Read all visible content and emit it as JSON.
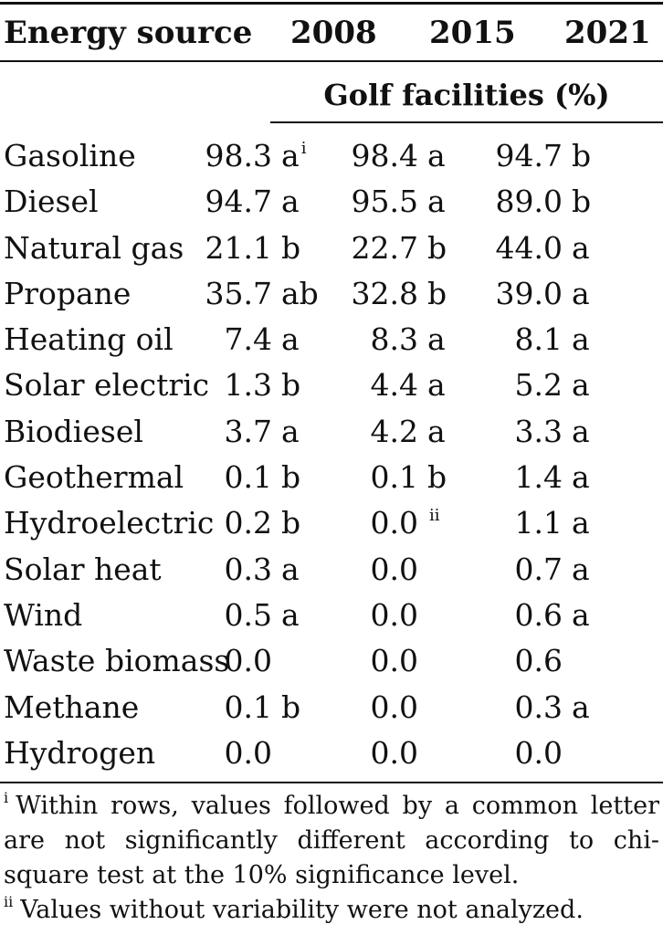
{
  "table": {
    "header": {
      "label": "Energy source",
      "years": [
        "2008",
        "2015",
        "2021"
      ]
    },
    "subheader": "Golf facilities (%)",
    "rows": [
      {
        "name": "Gasoline",
        "cells": [
          {
            "value": "98.3",
            "letter": "a",
            "note": "i"
          },
          {
            "value": "98.4",
            "letter": "a",
            "note": ""
          },
          {
            "value": "94.7",
            "letter": "b",
            "note": ""
          }
        ]
      },
      {
        "name": "Diesel",
        "cells": [
          {
            "value": "94.7",
            "letter": "a",
            "note": ""
          },
          {
            "value": "95.5",
            "letter": "a",
            "note": ""
          },
          {
            "value": "89.0",
            "letter": "b",
            "note": ""
          }
        ]
      },
      {
        "name": "Natural gas",
        "cells": [
          {
            "value": "21.1",
            "letter": "b",
            "note": ""
          },
          {
            "value": "22.7",
            "letter": "b",
            "note": ""
          },
          {
            "value": "44.0",
            "letter": "a",
            "note": ""
          }
        ]
      },
      {
        "name": "Propane",
        "cells": [
          {
            "value": "35.7",
            "letter": "ab",
            "note": ""
          },
          {
            "value": "32.8",
            "letter": "b",
            "note": ""
          },
          {
            "value": "39.0",
            "letter": "a",
            "note": ""
          }
        ]
      },
      {
        "name": "Heating oil",
        "cells": [
          {
            "value": "7.4",
            "letter": "a",
            "note": ""
          },
          {
            "value": "8.3",
            "letter": "a",
            "note": ""
          },
          {
            "value": "8.1",
            "letter": "a",
            "note": ""
          }
        ]
      },
      {
        "name": "Solar electric",
        "cells": [
          {
            "value": "1.3",
            "letter": "b",
            "note": ""
          },
          {
            "value": "4.4",
            "letter": "a",
            "note": ""
          },
          {
            "value": "5.2",
            "letter": "a",
            "note": ""
          }
        ]
      },
      {
        "name": "Biodiesel",
        "cells": [
          {
            "value": "3.7",
            "letter": "a",
            "note": ""
          },
          {
            "value": "4.2",
            "letter": "a",
            "note": ""
          },
          {
            "value": "3.3",
            "letter": "a",
            "note": ""
          }
        ]
      },
      {
        "name": "Geothermal",
        "cells": [
          {
            "value": "0.1",
            "letter": "b",
            "note": ""
          },
          {
            "value": "0.1",
            "letter": "b",
            "note": ""
          },
          {
            "value": "1.4",
            "letter": "a",
            "note": ""
          }
        ]
      },
      {
        "name": "Hydroelectric",
        "cells": [
          {
            "value": "0.2",
            "letter": "b",
            "note": ""
          },
          {
            "value": "0.0",
            "letter": "",
            "note": "ii"
          },
          {
            "value": "1.1",
            "letter": "a",
            "note": ""
          }
        ]
      },
      {
        "name": "Solar heat",
        "cells": [
          {
            "value": "0.3",
            "letter": "a",
            "note": ""
          },
          {
            "value": "0.0",
            "letter": "",
            "note": ""
          },
          {
            "value": "0.7",
            "letter": "a",
            "note": ""
          }
        ]
      },
      {
        "name": "Wind",
        "cells": [
          {
            "value": "0.5",
            "letter": "a",
            "note": ""
          },
          {
            "value": "0.0",
            "letter": "",
            "note": ""
          },
          {
            "value": "0.6",
            "letter": "a",
            "note": ""
          }
        ]
      },
      {
        "name": "Waste biomass",
        "cells": [
          {
            "value": "0.0",
            "letter": "",
            "note": ""
          },
          {
            "value": "0.0",
            "letter": "",
            "note": ""
          },
          {
            "value": "0.6",
            "letter": "",
            "note": ""
          }
        ]
      },
      {
        "name": "Methane",
        "cells": [
          {
            "value": "0.1",
            "letter": "b",
            "note": ""
          },
          {
            "value": "0.0",
            "letter": "",
            "note": ""
          },
          {
            "value": "0.3",
            "letter": "a",
            "note": ""
          }
        ]
      },
      {
        "name": "Hydrogen",
        "cells": [
          {
            "value": "0.0",
            "letter": "",
            "note": ""
          },
          {
            "value": "0.0",
            "letter": "",
            "note": ""
          },
          {
            "value": "0.0",
            "letter": "",
            "note": ""
          }
        ]
      }
    ]
  },
  "footnotes": [
    {
      "marker": "i",
      "text": "Within rows, values followed by a common letter are not significantly different according to chi-square test at the 10% significance level."
    },
    {
      "marker": "ii",
      "text": "Values without variability were not analyzed."
    }
  ]
}
